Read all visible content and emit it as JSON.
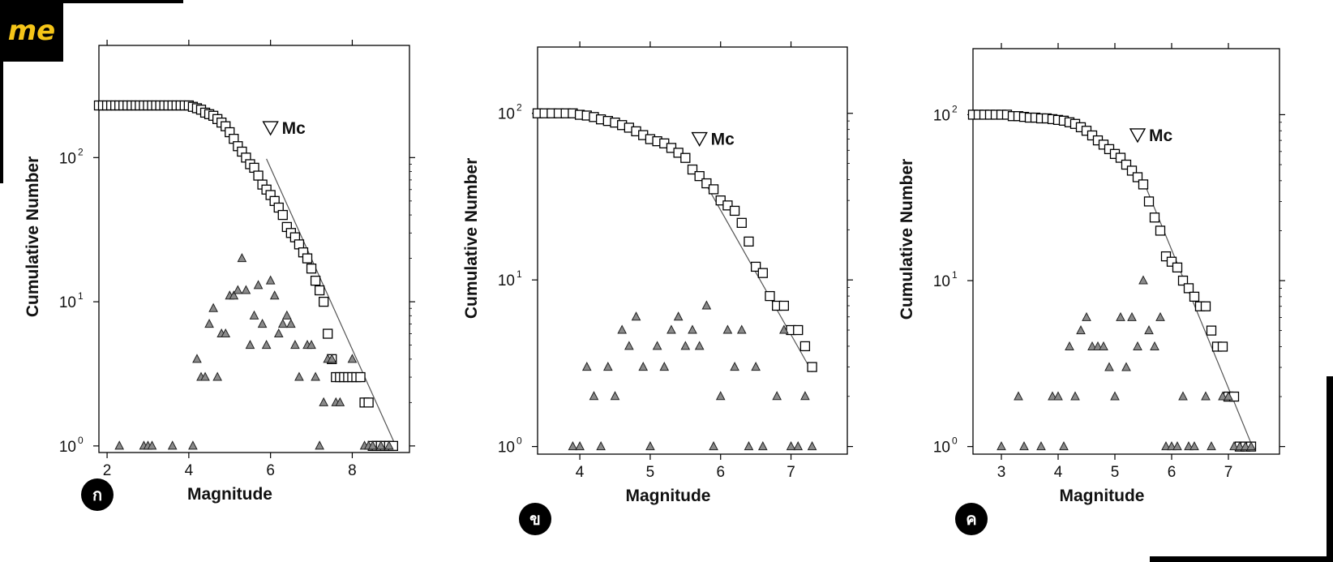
{
  "logo": {
    "text": "me",
    "colors": {
      "background": "#000000",
      "text": "#f5c518"
    }
  },
  "panel_labels": [
    "ก",
    "ข",
    "ค"
  ],
  "chart_data": [
    {
      "type": "scatter",
      "xlabel": "Magnitude",
      "ylabel": "Cumulative Number",
      "yscale": "log",
      "xlim": [
        1.8,
        9.4
      ],
      "ylim": [
        0.9,
        600
      ],
      "xticks": [
        2,
        4,
        6,
        8
      ],
      "yticks": [
        1,
        10,
        100
      ],
      "ytick_labels": [
        "10",
        "10",
        "10"
      ],
      "ytick_exponents": [
        "0",
        "1",
        "2"
      ],
      "annotation": {
        "label": "Mc",
        "x": 6.0,
        "y": 160
      },
      "fit_line": {
        "x": [
          5.9,
          9.1
        ],
        "y": [
          98,
          0.95
        ]
      },
      "series": [
        {
          "marker": "square",
          "x": [
            1.8,
            1.9,
            2.0,
            2.1,
            2.2,
            2.3,
            2.4,
            2.5,
            2.6,
            2.7,
            2.8,
            2.9,
            3.0,
            3.1,
            3.2,
            3.3,
            3.4,
            3.5,
            3.6,
            3.7,
            3.8,
            3.9,
            4.0,
            4.1,
            4.2,
            4.3,
            4.4,
            4.5,
            4.6,
            4.7,
            4.8,
            4.9,
            5.0,
            5.1,
            5.2,
            5.3,
            5.4,
            5.5,
            5.6,
            5.7,
            5.8,
            5.9,
            6.0,
            6.1,
            6.2,
            6.3,
            6.4,
            6.5,
            6.6,
            6.7,
            6.8,
            6.9,
            7.0,
            7.1,
            7.2,
            7.3,
            7.4,
            7.5,
            7.6,
            7.7,
            7.8,
            7.9,
            8.0,
            8.1,
            8.2,
            8.3,
            8.4,
            8.5,
            8.6,
            8.7,
            8.8,
            8.9,
            9.0
          ],
          "y": [
            230,
            230,
            230,
            230,
            230,
            230,
            230,
            230,
            230,
            230,
            230,
            230,
            230,
            230,
            230,
            230,
            230,
            230,
            230,
            230,
            230,
            230,
            230,
            225,
            220,
            215,
            205,
            200,
            195,
            185,
            175,
            165,
            150,
            135,
            120,
            110,
            100,
            90,
            85,
            75,
            65,
            60,
            55,
            50,
            45,
            40,
            33,
            30,
            28,
            25,
            22,
            20,
            17,
            14,
            12,
            10,
            6,
            4,
            3,
            3,
            3,
            3,
            3,
            3,
            3,
            2,
            2,
            1,
            1,
            1,
            1,
            1,
            1
          ]
        },
        {
          "marker": "triangle",
          "x": [
            2.3,
            2.9,
            3.0,
            3.1,
            3.6,
            4.1,
            4.2,
            4.3,
            4.4,
            4.5,
            4.6,
            4.7,
            4.8,
            4.9,
            5.0,
            5.1,
            5.2,
            5.3,
            5.4,
            5.5,
            5.6,
            5.7,
            5.8,
            5.9,
            6.0,
            6.1,
            6.2,
            6.3,
            6.4,
            6.5,
            6.6,
            6.7,
            6.9,
            7.0,
            7.1,
            7.2,
            7.3,
            7.4,
            7.5,
            7.6,
            7.7,
            8.0,
            8.3,
            8.4,
            8.5,
            8.7,
            8.9
          ],
          "y": [
            1,
            1,
            1,
            1,
            1,
            1,
            4,
            3,
            3,
            7,
            9,
            3,
            6,
            6,
            11,
            11,
            12,
            20,
            12,
            5,
            8,
            13,
            7,
            5,
            14,
            11,
            6,
            7,
            8,
            7,
            5,
            3,
            5,
            5,
            3,
            1,
            2,
            4,
            4,
            2,
            2,
            4,
            1,
            1,
            1,
            1,
            1
          ]
        }
      ]
    },
    {
      "type": "scatter",
      "xlabel": "Magnitude",
      "ylabel": "Cumulative Number",
      "yscale": "log",
      "xlim": [
        3.4,
        7.8
      ],
      "ylim": [
        0.9,
        250
      ],
      "xticks": [
        4,
        5,
        6,
        7
      ],
      "yticks": [
        1,
        10,
        100
      ],
      "ytick_labels": [
        "10",
        "10",
        "10"
      ],
      "ytick_exponents": [
        "0",
        "1",
        "2"
      ],
      "annotation": {
        "label": "Mc",
        "x": 5.7,
        "y": 70
      },
      "fit_line": {
        "x": [
          5.8,
          7.3
        ],
        "y": [
          37,
          2.8
        ]
      },
      "series": [
        {
          "marker": "square",
          "x": [
            3.4,
            3.5,
            3.6,
            3.7,
            3.8,
            3.9,
            4.0,
            4.1,
            4.2,
            4.3,
            4.4,
            4.5,
            4.6,
            4.7,
            4.8,
            4.9,
            5.0,
            5.1,
            5.2,
            5.3,
            5.4,
            5.5,
            5.6,
            5.7,
            5.8,
            5.9,
            6.0,
            6.1,
            6.2,
            6.3,
            6.4,
            6.5,
            6.6,
            6.7,
            6.8,
            6.9,
            7.0,
            7.1,
            7.2,
            7.3
          ],
          "y": [
            100,
            100,
            100,
            100,
            100,
            100,
            98,
            97,
            95,
            92,
            90,
            88,
            85,
            82,
            78,
            74,
            70,
            68,
            66,
            62,
            58,
            54,
            46,
            42,
            38,
            35,
            30,
            28,
            26,
            22,
            17,
            12,
            11,
            8,
            7,
            7,
            5,
            5,
            4,
            3
          ]
        },
        {
          "marker": "triangle",
          "x": [
            3.9,
            4.0,
            4.1,
            4.2,
            4.3,
            4.4,
            4.5,
            4.6,
            4.7,
            4.8,
            4.9,
            5.0,
            5.1,
            5.2,
            5.3,
            5.4,
            5.5,
            5.6,
            5.7,
            5.8,
            5.9,
            6.0,
            6.1,
            6.2,
            6.3,
            6.4,
            6.5,
            6.6,
            6.8,
            6.9,
            7.0,
            7.1,
            7.2,
            7.3
          ],
          "y": [
            1,
            1,
            3,
            2,
            1,
            3,
            2,
            5,
            4,
            6,
            3,
            1,
            4,
            3,
            5,
            6,
            4,
            5,
            4,
            7,
            1,
            2,
            5,
            3,
            5,
            1,
            3,
            1,
            2,
            5,
            1,
            1,
            2,
            1
          ]
        }
      ]
    },
    {
      "type": "scatter",
      "xlabel": "Magnitude",
      "ylabel": "Cumulative Number",
      "yscale": "log",
      "xlim": [
        2.5,
        7.9
      ],
      "ylim": [
        0.9,
        250
      ],
      "xticks": [
        3,
        4,
        5,
        6,
        7
      ],
      "yticks": [
        1,
        10,
        100
      ],
      "ytick_labels": [
        "10",
        "10",
        "10"
      ],
      "ytick_exponents": [
        "0",
        "1",
        "2"
      ],
      "annotation": {
        "label": "Mc",
        "x": 5.4,
        "y": 75
      },
      "fit_line": {
        "x": [
          5.5,
          7.45
        ],
        "y": [
          40,
          0.95
        ]
      },
      "series": [
        {
          "marker": "square",
          "x": [
            2.5,
            2.6,
            2.7,
            2.8,
            2.9,
            3.0,
            3.1,
            3.2,
            3.3,
            3.4,
            3.5,
            3.6,
            3.7,
            3.8,
            3.9,
            4.0,
            4.1,
            4.2,
            4.3,
            4.4,
            4.5,
            4.6,
            4.7,
            4.8,
            4.9,
            5.0,
            5.1,
            5.2,
            5.3,
            5.4,
            5.5,
            5.6,
            5.7,
            5.8,
            5.9,
            6.0,
            6.1,
            6.2,
            6.3,
            6.4,
            6.5,
            6.6,
            6.7,
            6.8,
            6.9,
            7.0,
            7.1,
            7.2,
            7.3,
            7.4
          ],
          "y": [
            100,
            100,
            100,
            100,
            100,
            100,
            100,
            98,
            98,
            97,
            96,
            96,
            95,
            95,
            94,
            93,
            92,
            90,
            88,
            84,
            80,
            75,
            70,
            66,
            62,
            58,
            55,
            50,
            46,
            42,
            38,
            30,
            24,
            20,
            14,
            13,
            12,
            10,
            9,
            8,
            7,
            7,
            5,
            4,
            4,
            2,
            2,
            1,
            1,
            1
          ]
        },
        {
          "marker": "triangle",
          "x": [
            3.0,
            3.3,
            3.4,
            3.7,
            3.9,
            4.0,
            4.1,
            4.2,
            4.3,
            4.4,
            4.5,
            4.6,
            4.7,
            4.8,
            4.9,
            5.0,
            5.1,
            5.2,
            5.3,
            5.4,
            5.5,
            5.6,
            5.7,
            5.8,
            5.9,
            6.0,
            6.1,
            6.2,
            6.3,
            6.4,
            6.6,
            6.7,
            6.9,
            7.0,
            7.1,
            7.2,
            7.3,
            7.4
          ],
          "y": [
            1,
            2,
            1,
            1,
            2,
            2,
            1,
            4,
            2,
            5,
            6,
            4,
            4,
            4,
            3,
            2,
            6,
            3,
            6,
            4,
            10,
            5,
            4,
            6,
            1,
            1,
            1,
            2,
            1,
            1,
            2,
            1,
            2,
            2,
            1,
            1,
            1,
            1
          ]
        }
      ]
    }
  ]
}
